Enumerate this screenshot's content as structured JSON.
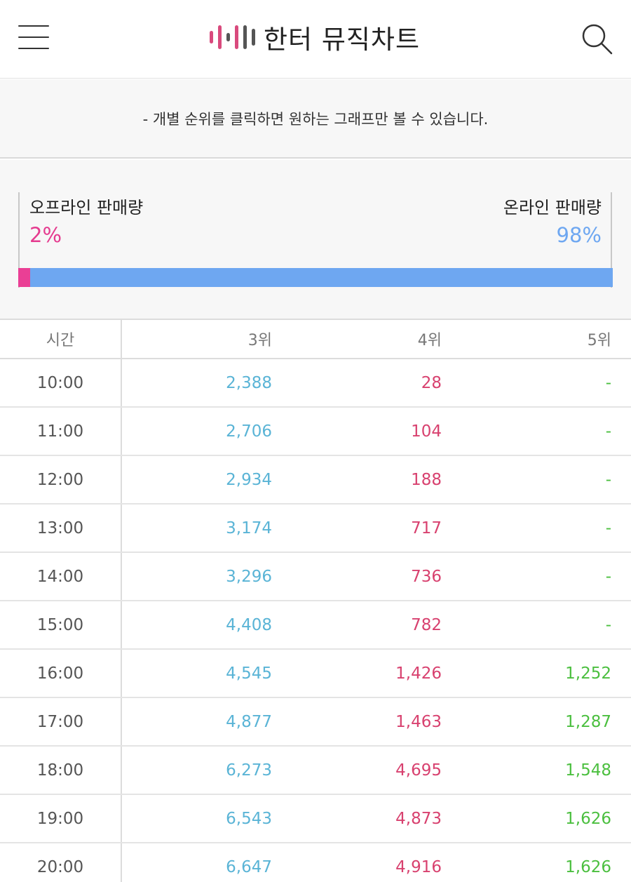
{
  "header": {
    "title": "한터 뮤직차트",
    "logo_colors": [
      "#d94a7d",
      "#d94a7d",
      "#555555",
      "#d94a7d",
      "#555555",
      "#555555"
    ]
  },
  "notice": {
    "text": "- 개별 순위를 클릭하면 원하는 그래프만 볼 수 있습니다."
  },
  "sales": {
    "offline_label": "오프라인 판매량",
    "offline_pct": "2%",
    "offline_share": 0.02,
    "online_label": "온라인 판매량",
    "online_pct": "98%",
    "online_share": 0.98,
    "offline_color": "#ea3f95",
    "online_color": "#6ea7f1"
  },
  "table": {
    "headers": {
      "time": "시간",
      "rank3": "3위",
      "rank4": "4위",
      "rank5": "5위"
    },
    "rows": [
      {
        "time": "10:00",
        "rank3": "2,388",
        "rank4": "28",
        "rank5": "-"
      },
      {
        "time": "11:00",
        "rank3": "2,706",
        "rank4": "104",
        "rank5": "-"
      },
      {
        "time": "12:00",
        "rank3": "2,934",
        "rank4": "188",
        "rank5": "-"
      },
      {
        "time": "13:00",
        "rank3": "3,174",
        "rank4": "717",
        "rank5": "-"
      },
      {
        "time": "14:00",
        "rank3": "3,296",
        "rank4": "736",
        "rank5": "-"
      },
      {
        "time": "15:00",
        "rank3": "4,408",
        "rank4": "782",
        "rank5": "-"
      },
      {
        "time": "16:00",
        "rank3": "4,545",
        "rank4": "1,426",
        "rank5": "1,252"
      },
      {
        "time": "17:00",
        "rank3": "4,877",
        "rank4": "1,463",
        "rank5": "1,287"
      },
      {
        "time": "18:00",
        "rank3": "6,273",
        "rank4": "4,695",
        "rank5": "1,548"
      },
      {
        "time": "19:00",
        "rank3": "6,543",
        "rank4": "4,873",
        "rank5": "1,626"
      },
      {
        "time": "20:00",
        "rank3": "6,647",
        "rank4": "4,916",
        "rank5": "1,626"
      }
    ],
    "colors": {
      "rank3": "#5ab4d6",
      "rank4": "#d8416f",
      "rank5": "#4bbf3f"
    }
  },
  "icons": {
    "menu": "hamburger-menu-icon",
    "search": "search-icon",
    "logo": "waveform-logo-icon"
  }
}
